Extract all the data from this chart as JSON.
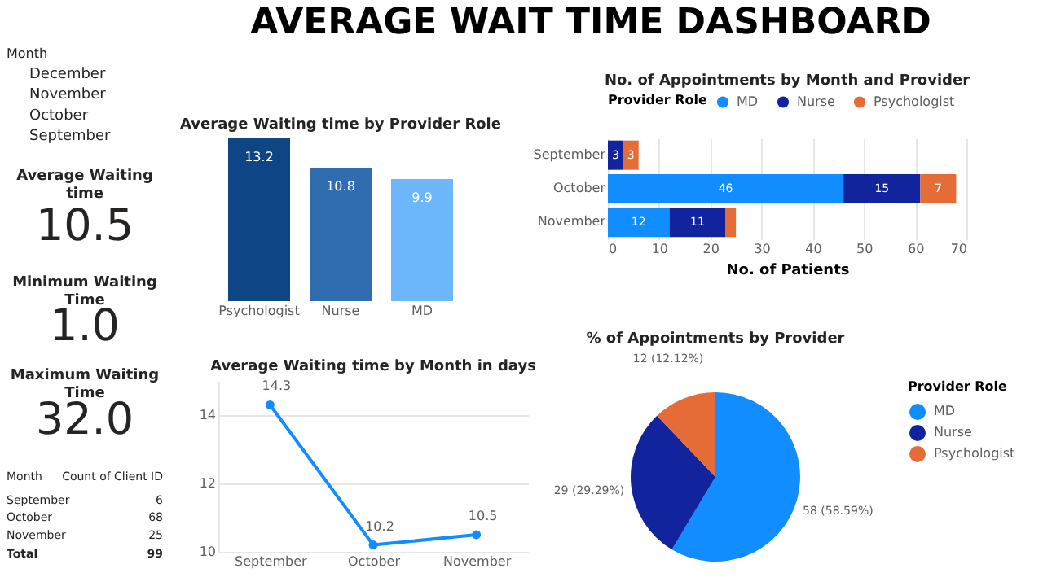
{
  "chart_data": [
    {
      "type": "other",
      "title": "AVERAGE WAIT TIME DASHBOARD",
      "annotations": [
        "Month",
        "December",
        "November",
        "October",
        "September",
        "Average Waiting time",
        "10.5",
        "Minimum Waiting Time",
        "1.0",
        "Maximum Waiting Time",
        "32.0",
        "Month",
        "Count of Client ID",
        "September",
        "6",
        "October",
        "68",
        "November",
        "25",
        "Total",
        "99"
      ]
    },
    {
      "type": "bar",
      "title": "Average Waiting time by Provider Role",
      "categories": [
        "Psychologist",
        "Nurse",
        "MD"
      ],
      "values": [
        13.2,
        10.8,
        9.9
      ],
      "colors": [
        "#0e4584",
        "#2f6db0",
        "#6cb6fb"
      ],
      "data_labels": true,
      "tick_labels": "x"
    },
    {
      "type": "bar",
      "title": "No. of Appointments by Month and Provider",
      "orientation": "horizontal",
      "stacked": true,
      "categories": [
        "September",
        "October",
        "November"
      ],
      "xlabel": "No. of Patients",
      "legend_title": "Provider Role",
      "legend": "top",
      "grid": "x",
      "xlim": [
        0,
        70
      ],
      "xticks": [
        0,
        10,
        20,
        30,
        40,
        50,
        60,
        70
      ],
      "series": [
        {
          "name": "MD",
          "color": "#118dff",
          "values": [
            null,
            46,
            12
          ],
          "value_labels": [
            null,
            "46",
            "12"
          ]
        },
        {
          "name": "Nurse",
          "color": "#12239e",
          "values": [
            3,
            15,
            11
          ],
          "value_labels": [
            "3",
            "15",
            "11"
          ]
        },
        {
          "name": "Psychologist",
          "color": "#e66c37",
          "values": [
            3,
            7,
            2
          ],
          "value_labels": [
            "3",
            "7",
            null
          ]
        }
      ]
    },
    {
      "type": "line",
      "title": "Average Waiting time by Month in days",
      "categories": [
        "September",
        "October",
        "November"
      ],
      "values": [
        14.3,
        10.2,
        10.5
      ],
      "color": "#118dff",
      "ylim": [
        10,
        15
      ],
      "yticks": [
        10,
        12,
        14
      ],
      "grid": "y",
      "marker": "circle",
      "line_style": "solid",
      "data_labels": true
    },
    {
      "type": "pie",
      "title": "% of Appointments by Provider",
      "categories": [
        "MD",
        "Nurse",
        "Psychologist"
      ],
      "values": [
        58,
        29,
        12
      ],
      "colors": [
        "#118dff",
        "#12239e",
        "#e66c37"
      ],
      "value_labels": [
        "58 (58.59%)",
        "29 (29.29%)",
        "12 (12.12%)"
      ],
      "legend_title": "Provider Role",
      "legend": "right"
    }
  ]
}
